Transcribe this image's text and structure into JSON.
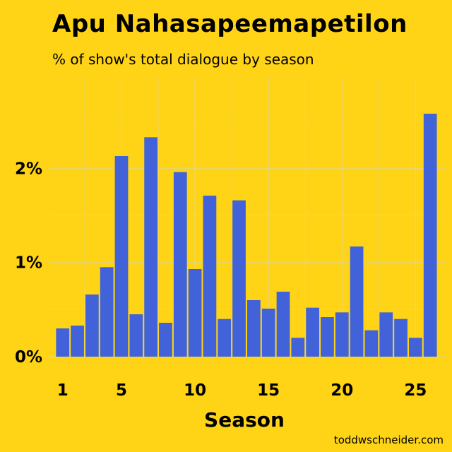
{
  "colors": {
    "background": "#FFD416",
    "bar": "#4162D8",
    "grid": "#E6D57A"
  },
  "credit": "toddwschneider.com",
  "chart_data": {
    "type": "bar",
    "title": "Apu Nahasapeemapetilon",
    "subtitle": "% of show's total dialogue by season",
    "xlabel": "Season",
    "ylabel": "",
    "x": [
      1,
      2,
      3,
      4,
      5,
      6,
      7,
      8,
      9,
      10,
      11,
      12,
      13,
      14,
      15,
      16,
      17,
      18,
      19,
      20,
      21,
      22,
      23,
      24,
      25,
      26
    ],
    "values": [
      0.3,
      0.33,
      0.66,
      0.95,
      2.13,
      0.45,
      2.33,
      0.36,
      1.96,
      0.93,
      1.71,
      0.4,
      1.66,
      0.6,
      0.51,
      0.69,
      0.2,
      0.52,
      0.42,
      0.47,
      1.17,
      0.28,
      0.47,
      0.4,
      0.2,
      2.58
    ],
    "ylim": [
      0,
      2.7
    ],
    "yticks": [
      0,
      1,
      2
    ],
    "ytick_labels": [
      "0%",
      "1%",
      "2%"
    ],
    "xticks": [
      1,
      5,
      10,
      15,
      20,
      25
    ],
    "xtick_labels": [
      "1",
      "5",
      "10",
      "15",
      "20",
      "25"
    ],
    "grid": true
  }
}
